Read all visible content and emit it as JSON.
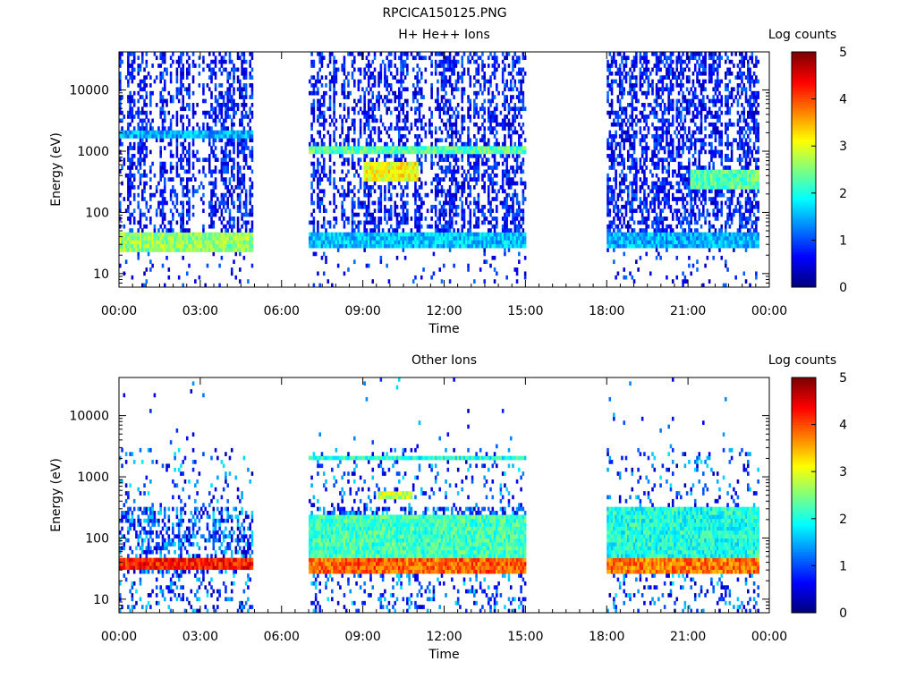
{
  "figure_title": "RPCICA150125.PNG",
  "colorbar_labels": [
    "Log counts",
    "Log counts"
  ],
  "chart_data": [
    {
      "type": "heatmap",
      "title": "H+ He++ Ions",
      "xlabel": "Time",
      "ylabel": "Energy (eV)",
      "x_ticks": [
        "00:00",
        "03:00",
        "06:00",
        "09:00",
        "12:00",
        "15:00",
        "18:00",
        "21:00",
        "00:00"
      ],
      "xlim_hours": [
        0,
        24
      ],
      "y_scale": "log",
      "y_ticks": [
        10,
        100,
        1000,
        10000
      ],
      "y_tick_labels": [
        "10",
        "100",
        "1000",
        "10000"
      ],
      "ylim_eV": [
        6,
        42000
      ],
      "colorbar": {
        "label": "Log counts",
        "range": [
          0,
          5
        ],
        "ticks": [
          "0",
          "1",
          "2",
          "3",
          "4",
          "5"
        ],
        "colormap": "jet"
      },
      "data_intervals_hours": [
        [
          0.0,
          4.9
        ],
        [
          7.0,
          15.0
        ],
        [
          18.0,
          23.6
        ]
      ],
      "features": [
        {
          "interval": [
            0.0,
            4.9
          ],
          "energy_eV": [
            24,
            45
          ],
          "log_counts": 2.6,
          "note": "dense low-energy band"
        },
        {
          "interval": [
            7.0,
            15.0
          ],
          "energy_eV": [
            27,
            45
          ],
          "log_counts": 1.6
        },
        {
          "interval": [
            18.0,
            23.6
          ],
          "energy_eV": [
            27,
            45
          ],
          "log_counts": 1.5
        },
        {
          "interval": [
            7.0,
            15.0
          ],
          "energy_eV": [
            850,
            1250
          ],
          "log_counts": 2.3
        },
        {
          "interval": [
            9.0,
            11.0
          ],
          "energy_eV": [
            330,
            650
          ],
          "log_counts": 3.1,
          "note": "peak beam"
        },
        {
          "interval": [
            21.0,
            23.6
          ],
          "energy_eV": [
            250,
            500
          ],
          "log_counts": 2.3
        },
        {
          "interval": [
            0.0,
            4.9
          ],
          "energy_eV": [
            1700,
            2300
          ],
          "log_counts": 1.5
        }
      ]
    },
    {
      "type": "heatmap",
      "title": "Other Ions",
      "xlabel": "Time",
      "ylabel": "Energy (eV)",
      "x_ticks": [
        "00:00",
        "03:00",
        "06:00",
        "09:00",
        "12:00",
        "15:00",
        "18:00",
        "21:00",
        "00:00"
      ],
      "xlim_hours": [
        0,
        24
      ],
      "y_scale": "log",
      "y_ticks": [
        10,
        100,
        1000,
        10000
      ],
      "y_tick_labels": [
        "10",
        "100",
        "1000",
        "10000"
      ],
      "ylim_eV": [
        6,
        42000
      ],
      "colorbar": {
        "label": "Log counts",
        "range": [
          0,
          5
        ],
        "ticks": [
          "0",
          "1",
          "2",
          "3",
          "4",
          "5"
        ],
        "colormap": "jet"
      },
      "data_intervals_hours": [
        [
          0.0,
          4.9
        ],
        [
          7.0,
          15.0
        ],
        [
          18.0,
          23.6
        ]
      ],
      "features": [
        {
          "interval": [
            0.0,
            4.9
          ],
          "energy_eV": [
            30,
            45
          ],
          "log_counts": 4.3,
          "note": "intense low-energy band"
        },
        {
          "interval": [
            7.0,
            15.0
          ],
          "energy_eV": [
            28,
            45
          ],
          "log_counts": 3.9
        },
        {
          "interval": [
            18.0,
            23.6
          ],
          "energy_eV": [
            28,
            45
          ],
          "log_counts": 3.8
        },
        {
          "interval": [
            7.0,
            15.0
          ],
          "energy_eV": [
            50,
            250
          ],
          "log_counts": 2.2
        },
        {
          "interval": [
            18.0,
            23.6
          ],
          "energy_eV": [
            50,
            300
          ],
          "log_counts": 2.0
        },
        {
          "interval": [
            7.0,
            15.0
          ],
          "energy_eV": [
            1800,
            2300
          ],
          "log_counts": 2.0
        },
        {
          "interval": [
            9.5,
            10.8
          ],
          "energy_eV": [
            420,
            620
          ],
          "log_counts": 2.8
        }
      ]
    }
  ]
}
